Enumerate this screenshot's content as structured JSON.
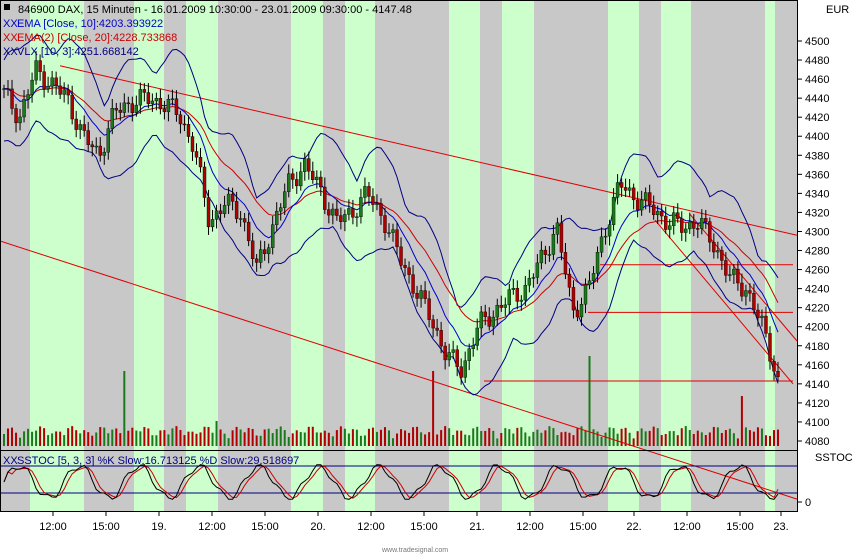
{
  "header": {
    "main_line": "846900  DAX, 15 Minuten - 16.01.2009 10:30:00 - 23.01.2009 09:30:00 - 4147.48",
    "ema10": "EMA [Close, 10]:4203.393922",
    "ema20": "EMA(2) [Close, 20]:4228.733868",
    "vlx": "VLX [10, 3]:4251.668142",
    "sstoc": "SSTOC [5, 3, 3]  %K Slow:16.713125  %D Slow:29.518697",
    "currency": "EUR",
    "sub_label": "SSTOC"
  },
  "footer": {
    "credit": "www.tradesignal.com"
  },
  "colors": {
    "green_band": "#ccffcc",
    "gray_band": "#c8c8c8",
    "candle_up": "#1a7a1a",
    "candle_down": "#b00000",
    "ema10": "#0000cc",
    "ema20": "#cc0000",
    "vlx": "#000080",
    "trendline": "#e00000"
  },
  "chart_data": [
    {
      "type": "candlestick",
      "title": "846900 DAX, 15 Minuten",
      "x_labels": [
        "12:00",
        "15:00",
        "19.",
        "12:00",
        "15:00",
        "20.",
        "12:00",
        "15:00",
        "21.",
        "12:00",
        "15:00",
        "22.",
        "12:00",
        "15:00",
        "23."
      ],
      "y_ticks": [
        4080,
        4100,
        4120,
        4140,
        4160,
        4180,
        4200,
        4220,
        4240,
        4260,
        4280,
        4300,
        4320,
        4340,
        4360,
        4380,
        4400,
        4420,
        4440,
        4460,
        4480,
        4500
      ],
      "ylim": [
        4075,
        4515
      ],
      "close_anchors": [
        4445,
        4420,
        4470,
        4455,
        4440,
        4400,
        4380,
        4425,
        4435,
        4440,
        4435,
        4425,
        4390,
        4310,
        4330,
        4320,
        4260,
        4305,
        4350,
        4370,
        4345,
        4310,
        4320,
        4340,
        4315,
        4275,
        4240,
        4210,
        4170,
        4155,
        4200,
        4215,
        4230,
        4240,
        4270,
        4305,
        4215,
        4240,
        4300,
        4350,
        4335,
        4325,
        4310,
        4305,
        4310,
        4285,
        4250,
        4240,
        4200,
        4147.48
      ],
      "last_close": 4147.48,
      "series": [
        {
          "name": "EMA [Close, 10]",
          "last": 4203.393922
        },
        {
          "name": "EMA(2) [Close, 20]",
          "last": 4228.733868
        },
        {
          "name": "VLX [10, 3]",
          "last": 4251.668142
        }
      ],
      "horizontal_levels": [
        4265,
        4215,
        4143
      ],
      "trend_channel": {
        "upper": [
          4474,
          4296
        ],
        "lower": [
          4290,
          4082
        ]
      },
      "volume_spikes": [
        0.6,
        0.35,
        0.6,
        0.3
      ]
    },
    {
      "type": "line",
      "title": "SSTOC [5, 3, 3]",
      "y_ticks": [
        0
      ],
      "series": [
        {
          "name": "%K Slow",
          "last": 16.713125
        },
        {
          "name": "%D Slow",
          "last": 29.518697
        }
      ]
    }
  ]
}
